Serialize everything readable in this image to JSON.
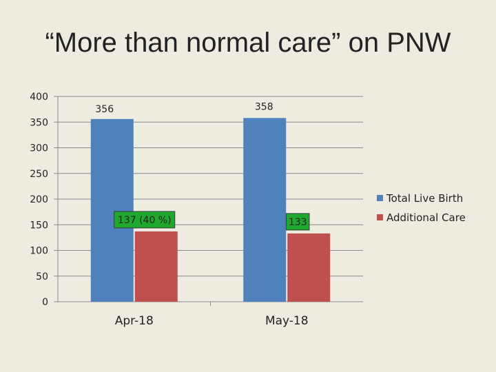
{
  "title": "“More than normal care” on PNW",
  "chart_data": {
    "type": "bar",
    "categories": [
      "Apr-18",
      "May-18"
    ],
    "series": [
      {
        "name": "Total Live Birth",
        "values": [
          356,
          358
        ],
        "color": "#4f81bd",
        "labels": [
          "356",
          "358"
        ]
      },
      {
        "name": "Additional Care",
        "values": [
          137,
          133
        ],
        "color": "#c0504d",
        "labels": [
          "137 (40 %)",
          "133"
        ],
        "label_box_color": "#1ea82e"
      }
    ],
    "ylim": [
      0,
      400
    ],
    "yticks": [
      0,
      50,
      100,
      150,
      200,
      250,
      300,
      350,
      400
    ],
    "grid": true,
    "legend_position": "right"
  }
}
